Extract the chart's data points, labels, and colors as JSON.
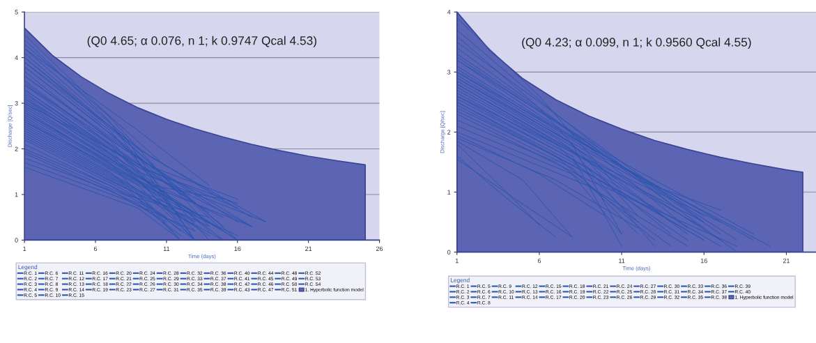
{
  "chart_data": [
    {
      "type": "line",
      "xlabel": "Time (days)",
      "ylabel": "Discharge [Q/sec]",
      "legend_title": "Legend",
      "legend": "bottom",
      "grid": "y",
      "marker": "none",
      "line_style": "solid",
      "annotations": [
        "(Q0 4.65; α 0.076, n 1; k 0.9747 Qcal 4.53)"
      ],
      "xlim": [
        1,
        26
      ],
      "xticks": [
        1,
        6,
        11,
        16,
        21,
        26
      ],
      "ylim": [
        0,
        5
      ],
      "yticks": [
        0,
        1,
        2,
        3,
        4,
        5
      ],
      "series": [
        {
          "name": "R.C. 1",
          "color": "#2a56b0",
          "x": [
            1,
            7,
            13
          ],
          "values": [
            4.4,
            2.6,
            0.0
          ]
        },
        {
          "name": "R.C. 2",
          "color": "#2a56b0",
          "x": [
            1,
            7,
            14
          ],
          "values": [
            4.3,
            2.7,
            0.3
          ]
        },
        {
          "name": "R.C. 3",
          "color": "#2a56b0",
          "x": [
            1,
            8,
            13
          ],
          "values": [
            4.2,
            2.3,
            0.0
          ]
        },
        {
          "name": "R.C. 4",
          "color": "#2a56b0",
          "x": [
            1,
            7,
            15
          ],
          "values": [
            4.1,
            2.5,
            0.2
          ]
        },
        {
          "name": "R.C. 5",
          "color": "#2a56b0",
          "x": [
            1,
            8,
            16
          ],
          "values": [
            4.0,
            2.2,
            0.0
          ]
        },
        {
          "name": "R.C. 6",
          "color": "#2a56b0",
          "x": [
            1,
            7,
            14
          ],
          "values": [
            3.9,
            2.4,
            0.0
          ]
        },
        {
          "name": "R.C. 7",
          "color": "#2a56b0",
          "x": [
            1,
            8,
            15
          ],
          "values": [
            3.8,
            2.1,
            0.3
          ]
        },
        {
          "name": "R.C. 8",
          "color": "#2a56b0",
          "x": [
            1,
            7,
            12
          ],
          "values": [
            3.7,
            2.2,
            0.5
          ]
        },
        {
          "name": "R.C. 9",
          "color": "#2a56b0",
          "x": [
            1,
            8,
            16
          ],
          "values": [
            3.6,
            2.0,
            0.4
          ]
        },
        {
          "name": "R.C. 10",
          "color": "#2a56b0",
          "x": [
            1,
            7,
            13
          ],
          "values": [
            3.5,
            2.1,
            0.2
          ]
        },
        {
          "name": "R.C. 11",
          "color": "#2a56b0",
          "x": [
            1,
            8,
            14
          ],
          "values": [
            3.45,
            1.9,
            0.6
          ]
        },
        {
          "name": "R.C. 12",
          "color": "#2a56b0",
          "x": [
            1,
            9,
            17
          ],
          "values": [
            3.4,
            1.8,
            0.3
          ]
        },
        {
          "name": "R.C. 13",
          "color": "#2a56b0",
          "x": [
            1,
            7,
            13
          ],
          "values": [
            3.3,
            2.0,
            0.0
          ]
        },
        {
          "name": "R.C. 14",
          "color": "#2a56b0",
          "x": [
            1,
            8,
            15
          ],
          "values": [
            3.25,
            1.7,
            0.0
          ]
        },
        {
          "name": "R.C. 15",
          "color": "#2a56b0",
          "x": [
            1,
            9,
            16
          ],
          "values": [
            3.2,
            1.6,
            0.8
          ]
        },
        {
          "name": "R.C. 16",
          "color": "#2a56b0",
          "x": [
            1,
            7,
            12
          ],
          "values": [
            3.15,
            1.9,
            0.4
          ]
        },
        {
          "name": "R.C. 17",
          "color": "#2a56b0",
          "x": [
            1,
            8,
            14
          ],
          "values": [
            3.1,
            1.8,
            0.2
          ]
        },
        {
          "name": "R.C. 18",
          "color": "#2a56b0",
          "x": [
            1,
            9,
            18
          ],
          "values": [
            3.05,
            1.5,
            0.4
          ]
        },
        {
          "name": "R.C. 19",
          "color": "#2a56b0",
          "x": [
            1,
            7,
            13
          ],
          "values": [
            3.0,
            1.8,
            0.3
          ]
        },
        {
          "name": "R.C. 20",
          "color": "#2a56b0",
          "x": [
            1,
            8,
            16
          ],
          "values": [
            2.95,
            1.6,
            0.0
          ]
        },
        {
          "name": "R.C. 21",
          "color": "#2a56b0",
          "x": [
            1,
            9,
            15
          ],
          "values": [
            2.9,
            1.4,
            0.5
          ]
        },
        {
          "name": "R.C. 22",
          "color": "#2a56b0",
          "x": [
            1,
            7,
            12
          ],
          "values": [
            2.85,
            1.7,
            0.0
          ]
        },
        {
          "name": "R.C. 23",
          "color": "#2a56b0",
          "x": [
            1,
            8,
            14
          ],
          "values": [
            2.8,
            1.5,
            0.4
          ]
        },
        {
          "name": "R.C. 24",
          "color": "#2a56b0",
          "x": [
            1,
            9,
            17
          ],
          "values": [
            2.75,
            1.3,
            0.3
          ]
        },
        {
          "name": "R.C. 25",
          "color": "#2a56b0",
          "x": [
            1,
            7,
            13
          ],
          "values": [
            2.7,
            1.6,
            0.6
          ]
        },
        {
          "name": "R.C. 26",
          "color": "#2a56b0",
          "x": [
            1,
            8,
            15
          ],
          "values": [
            2.65,
            1.4,
            0.2
          ]
        },
        {
          "name": "R.C. 27",
          "color": "#2a56b0",
          "x": [
            1,
            9,
            13
          ],
          "values": [
            2.6,
            1.2,
            0.0
          ]
        },
        {
          "name": "R.C. 28",
          "color": "#2a56b0",
          "x": [
            1,
            7,
            12
          ],
          "values": [
            2.55,
            1.5,
            0.2
          ]
        },
        {
          "name": "R.C. 29",
          "color": "#2a56b0",
          "x": [
            1,
            8,
            14
          ],
          "values": [
            2.5,
            1.3,
            0.1
          ]
        },
        {
          "name": "R.C. 30",
          "color": "#2a56b0",
          "x": [
            1,
            9,
            16
          ],
          "values": [
            2.45,
            1.1,
            0.1
          ]
        },
        {
          "name": "R.C. 31",
          "color": "#2a56b0",
          "x": [
            1,
            7,
            13
          ],
          "values": [
            2.4,
            1.4,
            0.4
          ]
        },
        {
          "name": "R.C. 32",
          "color": "#2a56b0",
          "x": [
            1,
            8,
            12
          ],
          "values": [
            2.35,
            1.2,
            0.0
          ]
        },
        {
          "name": "R.C. 33",
          "color": "#2a56b0",
          "x": [
            1,
            9,
            15
          ],
          "values": [
            2.3,
            1.0,
            0.0
          ]
        },
        {
          "name": "R.C. 34",
          "color": "#2a56b0",
          "x": [
            1,
            7,
            14
          ],
          "values": [
            2.25,
            1.3,
            0.3
          ]
        },
        {
          "name": "R.C. 35",
          "color": "#2a56b0",
          "x": [
            1,
            8,
            11
          ],
          "values": [
            2.2,
            1.1,
            0.5
          ]
        },
        {
          "name": "R.C. 36",
          "color": "#2a56b0",
          "x": [
            1,
            9,
            13
          ],
          "values": [
            2.1,
            0.9,
            0.0
          ]
        },
        {
          "name": "R.C. 37",
          "color": "#2a56b0",
          "x": [
            1,
            7,
            12
          ],
          "values": [
            2.0,
            1.2,
            0.3
          ]
        },
        {
          "name": "R.C. 38",
          "color": "#2a56b0",
          "x": [
            1,
            8,
            14
          ],
          "values": [
            1.95,
            1.0,
            0.5
          ]
        },
        {
          "name": "R.C. 39",
          "color": "#2a56b0",
          "x": [
            1,
            9,
            12
          ],
          "values": [
            1.9,
            0.8,
            0.1
          ]
        },
        {
          "name": "R.C. 40",
          "color": "#2a56b0",
          "x": [
            1,
            7,
            11
          ],
          "values": [
            1.8,
            1.1,
            0.4
          ]
        },
        {
          "name": "R.C. 41",
          "color": "#2a56b0",
          "x": [
            1,
            8,
            13
          ],
          "values": [
            1.7,
            0.9,
            0.2
          ]
        },
        {
          "name": "R.C. 42",
          "color": "#2a56b0",
          "x": [
            1,
            9,
            12
          ],
          "values": [
            1.6,
            0.7,
            0.0
          ]
        },
        {
          "name": "R.C. 43",
          "color": "#2a56b0",
          "x": [
            1,
            10,
            16
          ],
          "values": [
            3.6,
            1.6,
            0.9
          ]
        },
        {
          "name": "R.C. 44",
          "color": "#2a56b0",
          "x": [
            1,
            10,
            18
          ],
          "values": [
            3.9,
            1.8,
            0.4
          ]
        },
        {
          "name": "R.C. 45",
          "color": "#2a56b0",
          "x": [
            1,
            9,
            14
          ],
          "values": [
            4.2,
            2.4,
            1.2
          ]
        },
        {
          "name": "R.C. 46",
          "color": "#2a56b0",
          "x": [
            1,
            10,
            17
          ],
          "values": [
            3.3,
            1.4,
            0.3
          ]
        },
        {
          "name": "R.C. 47",
          "color": "#2a56b0",
          "x": [
            1,
            10,
            16
          ],
          "values": [
            3.0,
            1.5,
            0.7
          ]
        },
        {
          "name": "R.C. 48",
          "color": "#2a56b0",
          "x": [
            1,
            10,
            15
          ],
          "values": [
            2.8,
            1.2,
            0.9
          ]
        },
        {
          "name": "R.C. 49",
          "color": "#2a56b0",
          "x": [
            1,
            6,
            11
          ],
          "values": [
            4.5,
            3.0,
            1.6
          ]
        },
        {
          "name": "R.C. 50",
          "color": "#2a56b0",
          "x": [
            1,
            6,
            12
          ],
          "values": [
            3.8,
            2.6,
            1.0
          ]
        },
        {
          "name": "R.C. 51",
          "color": "#2a56b0",
          "x": [
            1,
            6,
            13
          ],
          "values": [
            3.4,
            2.3,
            0.8
          ]
        },
        {
          "name": "R.C. 52",
          "color": "#2a56b0",
          "x": [
            1,
            6,
            13
          ],
          "values": [
            2.6,
            1.8,
            0.6
          ]
        },
        {
          "name": "R.C. 53",
          "color": "#2a56b0",
          "x": [
            1,
            9,
            17
          ],
          "values": [
            4.0,
            2.0,
            0.5
          ]
        },
        {
          "name": "R.C. 54",
          "color": "#2a56b0",
          "x": [
            1,
            11,
            16
          ],
          "values": [
            3.1,
            1.0,
            0.0
          ]
        },
        {
          "name": "1. Hyperbolic function model",
          "type": "area",
          "color": "#5c64b4",
          "x": [
            1,
            3,
            5,
            7,
            9,
            11,
            13,
            15,
            17,
            19,
            21,
            23,
            25
          ],
          "values": [
            4.65,
            4.04,
            3.58,
            3.21,
            2.9,
            2.65,
            2.44,
            2.26,
            2.1,
            1.96,
            1.84,
            1.74,
            1.65
          ]
        }
      ]
    },
    {
      "type": "line",
      "xlabel": "Time (days)",
      "ylabel": "Discharge [Q/sec]",
      "legend_title": "Legend",
      "legend": "bottom",
      "grid": "y",
      "marker": "none",
      "line_style": "solid",
      "annotations": [
        "(Q0 4.23; α 0.099, n 1; k 0.9560 Qcal 4.55)"
      ],
      "xlim": [
        1,
        22.8
      ],
      "xticks": [
        1,
        6,
        11,
        16,
        21
      ],
      "ylim": [
        0,
        4
      ],
      "yticks": [
        0,
        1,
        2,
        3,
        4
      ],
      "series": [
        {
          "name": "R.C. 1",
          "color": "#2a56b0",
          "x": [
            1,
            6,
            11
          ],
          "values": [
            3.9,
            2.6,
            1.0
          ]
        },
        {
          "name": "R.C. 2",
          "color": "#2a56b0",
          "x": [
            1,
            7,
            14
          ],
          "values": [
            3.7,
            2.3,
            0.8
          ]
        },
        {
          "name": "R.C. 3",
          "color": "#2a56b0",
          "x": [
            1,
            6,
            12
          ],
          "values": [
            3.6,
            2.4,
            0.6
          ]
        },
        {
          "name": "R.C. 4",
          "color": "#2a56b0",
          "x": [
            1,
            8,
            16
          ],
          "values": [
            3.5,
            2.1,
            0.5
          ]
        },
        {
          "name": "R.C. 5",
          "color": "#2a56b0",
          "x": [
            1,
            7,
            15
          ],
          "values": [
            3.4,
            2.2,
            0.4
          ]
        },
        {
          "name": "R.C. 6",
          "color": "#2a56b0",
          "x": [
            1,
            8,
            17
          ],
          "values": [
            3.3,
            2.0,
            0.3
          ]
        },
        {
          "name": "R.C. 7",
          "color": "#2a56b0",
          "x": [
            1,
            9,
            18
          ],
          "values": [
            3.25,
            1.8,
            0.0
          ]
        },
        {
          "name": "R.C. 8",
          "color": "#2a56b0",
          "x": [
            1,
            7,
            16
          ],
          "values": [
            3.2,
            2.1,
            0.6
          ]
        },
        {
          "name": "R.C. 9",
          "color": "#2a56b0",
          "x": [
            1,
            8,
            19
          ],
          "values": [
            3.1,
            1.9,
            0.2
          ]
        },
        {
          "name": "R.C. 10",
          "color": "#2a56b0",
          "x": [
            1,
            9,
            20
          ],
          "values": [
            3.05,
            1.7,
            0.1
          ]
        },
        {
          "name": "R.C. 11",
          "color": "#2a56b0",
          "x": [
            1,
            7,
            14
          ],
          "values": [
            3.0,
            2.0,
            0.5
          ]
        },
        {
          "name": "R.C. 12",
          "color": "#2a56b0",
          "x": [
            1,
            8,
            11
          ],
          "values": [
            2.95,
            1.8,
            0.3
          ]
        },
        {
          "name": "R.C. 13",
          "color": "#2a56b0",
          "x": [
            1,
            9,
            17
          ],
          "values": [
            2.9,
            1.6,
            0.2
          ]
        },
        {
          "name": "R.C. 14",
          "color": "#2a56b0",
          "x": [
            1,
            7,
            15
          ],
          "values": [
            2.85,
            1.9,
            0.3
          ]
        },
        {
          "name": "R.C. 15",
          "color": "#2a56b0",
          "x": [
            1,
            8,
            13
          ],
          "values": [
            2.8,
            1.7,
            0.1
          ]
        },
        {
          "name": "R.C. 16",
          "color": "#2a56b0",
          "x": [
            1,
            9,
            16
          ],
          "values": [
            2.75,
            1.5,
            0.4
          ]
        },
        {
          "name": "R.C. 17",
          "color": "#2a56b0",
          "x": [
            1,
            7,
            12
          ],
          "values": [
            2.7,
            1.8,
            0.5
          ]
        },
        {
          "name": "R.C. 18",
          "color": "#2a56b0",
          "x": [
            1,
            8,
            11
          ],
          "values": [
            2.65,
            1.6,
            0.1
          ]
        },
        {
          "name": "R.C. 19",
          "color": "#2a56b0",
          "x": [
            1,
            9,
            14
          ],
          "values": [
            2.6,
            1.4,
            0.3
          ]
        },
        {
          "name": "R.C. 20",
          "color": "#2a56b0",
          "x": [
            1,
            7,
            17
          ],
          "values": [
            2.55,
            1.7,
            0.1
          ]
        },
        {
          "name": "R.C. 21",
          "color": "#2a56b0",
          "x": [
            1,
            8,
            15
          ],
          "values": [
            2.5,
            1.5,
            0.2
          ]
        },
        {
          "name": "R.C. 22",
          "color": "#2a56b0",
          "x": [
            1,
            9,
            16
          ],
          "values": [
            2.45,
            1.3,
            0.2
          ]
        },
        {
          "name": "R.C. 23",
          "color": "#2a56b0",
          "x": [
            1,
            7,
            13
          ],
          "values": [
            2.4,
            1.6,
            0.2
          ]
        },
        {
          "name": "R.C. 24",
          "color": "#2a56b0",
          "x": [
            1,
            8,
            12
          ],
          "values": [
            2.35,
            1.4,
            0.3
          ]
        },
        {
          "name": "R.C. 25",
          "color": "#2a56b0",
          "x": [
            1,
            9,
            18
          ],
          "values": [
            2.3,
            1.2,
            0.1
          ]
        },
        {
          "name": "R.C. 26",
          "color": "#2a56b0",
          "x": [
            1,
            7,
            14
          ],
          "values": [
            2.2,
            1.5,
            0.1
          ]
        },
        {
          "name": "R.C. 27",
          "color": "#2a56b0",
          "x": [
            1,
            8,
            11
          ],
          "values": [
            2.1,
            1.3,
            0.3
          ]
        },
        {
          "name": "R.C. 28",
          "color": "#2a56b0",
          "x": [
            1,
            9,
            15
          ],
          "values": [
            2.0,
            1.1,
            0.1
          ]
        },
        {
          "name": "R.C. 29",
          "color": "#2a56b0",
          "x": [
            1,
            6,
            10
          ],
          "values": [
            1.95,
            1.3,
            0.6
          ]
        },
        {
          "name": "R.C. 30",
          "color": "#2a56b0",
          "x": [
            1,
            7,
            12
          ],
          "values": [
            1.9,
            1.2,
            0.4
          ]
        },
        {
          "name": "R.C. 31",
          "color": "#2a56b0",
          "x": [
            1,
            5,
            8
          ],
          "values": [
            1.85,
            1.2,
            0.25
          ]
        },
        {
          "name": "R.C. 32",
          "color": "#2a56b0",
          "x": [
            1,
            4,
            6
          ],
          "values": [
            1.8,
            1.0,
            0.45
          ]
        },
        {
          "name": "R.C. 33",
          "color": "#2a56b0",
          "x": [
            1,
            4,
            7
          ],
          "values": [
            1.6,
            0.9,
            0.25
          ]
        },
        {
          "name": "R.C. 34",
          "color": "#2a56b0",
          "x": [
            1,
            5,
            8
          ],
          "values": [
            1.55,
            0.8,
            0.25
          ]
        },
        {
          "name": "R.C. 35",
          "color": "#2a56b0",
          "x": [
            1,
            10,
            17
          ],
          "values": [
            2.6,
            1.4,
            0.5
          ]
        },
        {
          "name": "R.C. 36",
          "color": "#2a56b0",
          "x": [
            1,
            11,
            16
          ],
          "values": [
            2.8,
            1.2,
            0.5
          ]
        },
        {
          "name": "R.C. 37",
          "color": "#2a56b0",
          "x": [
            1,
            10,
            18
          ],
          "values": [
            3.0,
            1.6,
            0.2
          ]
        },
        {
          "name": "R.C. 38",
          "color": "#2a56b0",
          "x": [
            1,
            11,
            19
          ],
          "values": [
            3.2,
            1.5,
            0.3
          ]
        },
        {
          "name": "R.C. 39",
          "color": "#2a56b0",
          "x": [
            1,
            11,
            16
          ],
          "values": [
            2.5,
            1.0,
            0.2
          ]
        },
        {
          "name": "R.C. 40",
          "color": "#2a56b0",
          "x": [
            1,
            12,
            17
          ],
          "values": [
            2.9,
            1.2,
            0.7
          ]
        },
        {
          "name": "1. Hyperbolic function model",
          "type": "area",
          "color": "#5c64b4",
          "x": [
            1,
            3,
            5,
            7,
            9,
            11,
            13,
            15,
            17,
            19,
            21,
            22
          ],
          "values": [
            4.0,
            3.36,
            2.89,
            2.54,
            2.27,
            2.05,
            1.86,
            1.71,
            1.58,
            1.47,
            1.37,
            1.33
          ]
        }
      ]
    }
  ]
}
